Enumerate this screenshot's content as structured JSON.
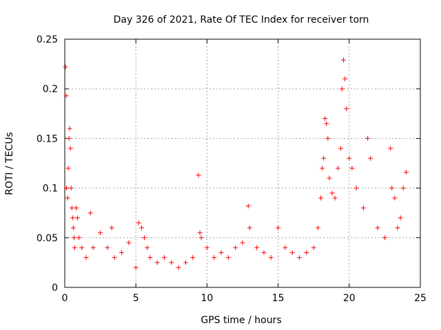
{
  "chart_data": {
    "type": "scatter",
    "title": "Day 326 of 2021, Rate Of TEC Index for receiver torn",
    "xlabel": "GPS time / hours",
    "ylabel": "ROTI / TECUs",
    "xlim": [
      0,
      25
    ],
    "ylim": [
      0,
      0.25
    ],
    "xticks": [
      "0",
      "5",
      "10",
      "15",
      "20",
      "25"
    ],
    "yticks": [
      "0",
      "0.05",
      "0.1",
      "0.15",
      "0.2",
      "0.25"
    ],
    "grid": true,
    "marker": "+",
    "color": "#ff0000",
    "series": [
      {
        "x": [
          0.05,
          0.1,
          0.12,
          0.2,
          0.25,
          0.3,
          0.35,
          0.4,
          0.45,
          0.5,
          0.55,
          0.6,
          0.65,
          0.7,
          0.8,
          0.9,
          1.0,
          1.2,
          1.5,
          1.8,
          2.0,
          2.5,
          3.0,
          3.3,
          3.5,
          4.0,
          4.5,
          5.0,
          5.2,
          5.4,
          5.6,
          5.8,
          6.0,
          6.5,
          7.0,
          7.5,
          8.0,
          8.5,
          9.0,
          9.4,
          9.5,
          9.6,
          10.0,
          10.5,
          11.0,
          11.5,
          12.0,
          12.5,
          12.9,
          13.0,
          13.5,
          14.0,
          14.5,
          15.0,
          15.5,
          16.0,
          16.5,
          17.0,
          17.5,
          17.8,
          18.0,
          18.1,
          18.2,
          18.3,
          18.4,
          18.5,
          18.6,
          18.8,
          19.0,
          19.2,
          19.4,
          19.5,
          19.6,
          19.7,
          19.8,
          20.0,
          20.2,
          20.5,
          21.0,
          21.3,
          21.5,
          22.0,
          22.5,
          22.9,
          23.0,
          23.2,
          23.4,
          23.6,
          23.8,
          24.0
        ],
        "y": [
          0.222,
          0.193,
          0.1,
          0.09,
          0.12,
          0.15,
          0.16,
          0.14,
          0.1,
          0.08,
          0.07,
          0.06,
          0.05,
          0.04,
          0.08,
          0.07,
          0.05,
          0.04,
          0.03,
          0.075,
          0.04,
          0.055,
          0.04,
          0.06,
          0.03,
          0.035,
          0.045,
          0.02,
          0.065,
          0.06,
          0.05,
          0.04,
          0.03,
          0.025,
          0.03,
          0.025,
          0.02,
          0.025,
          0.03,
          0.113,
          0.055,
          0.05,
          0.04,
          0.03,
          0.035,
          0.03,
          0.04,
          0.045,
          0.082,
          0.06,
          0.04,
          0.035,
          0.03,
          0.06,
          0.04,
          0.035,
          0.03,
          0.035,
          0.04,
          0.06,
          0.09,
          0.12,
          0.13,
          0.17,
          0.165,
          0.15,
          0.11,
          0.095,
          0.09,
          0.12,
          0.14,
          0.2,
          0.229,
          0.21,
          0.18,
          0.13,
          0.12,
          0.1,
          0.08,
          0.15,
          0.13,
          0.06,
          0.05,
          0.14,
          0.1,
          0.09,
          0.06,
          0.07,
          0.1,
          0.116
        ]
      }
    ]
  }
}
